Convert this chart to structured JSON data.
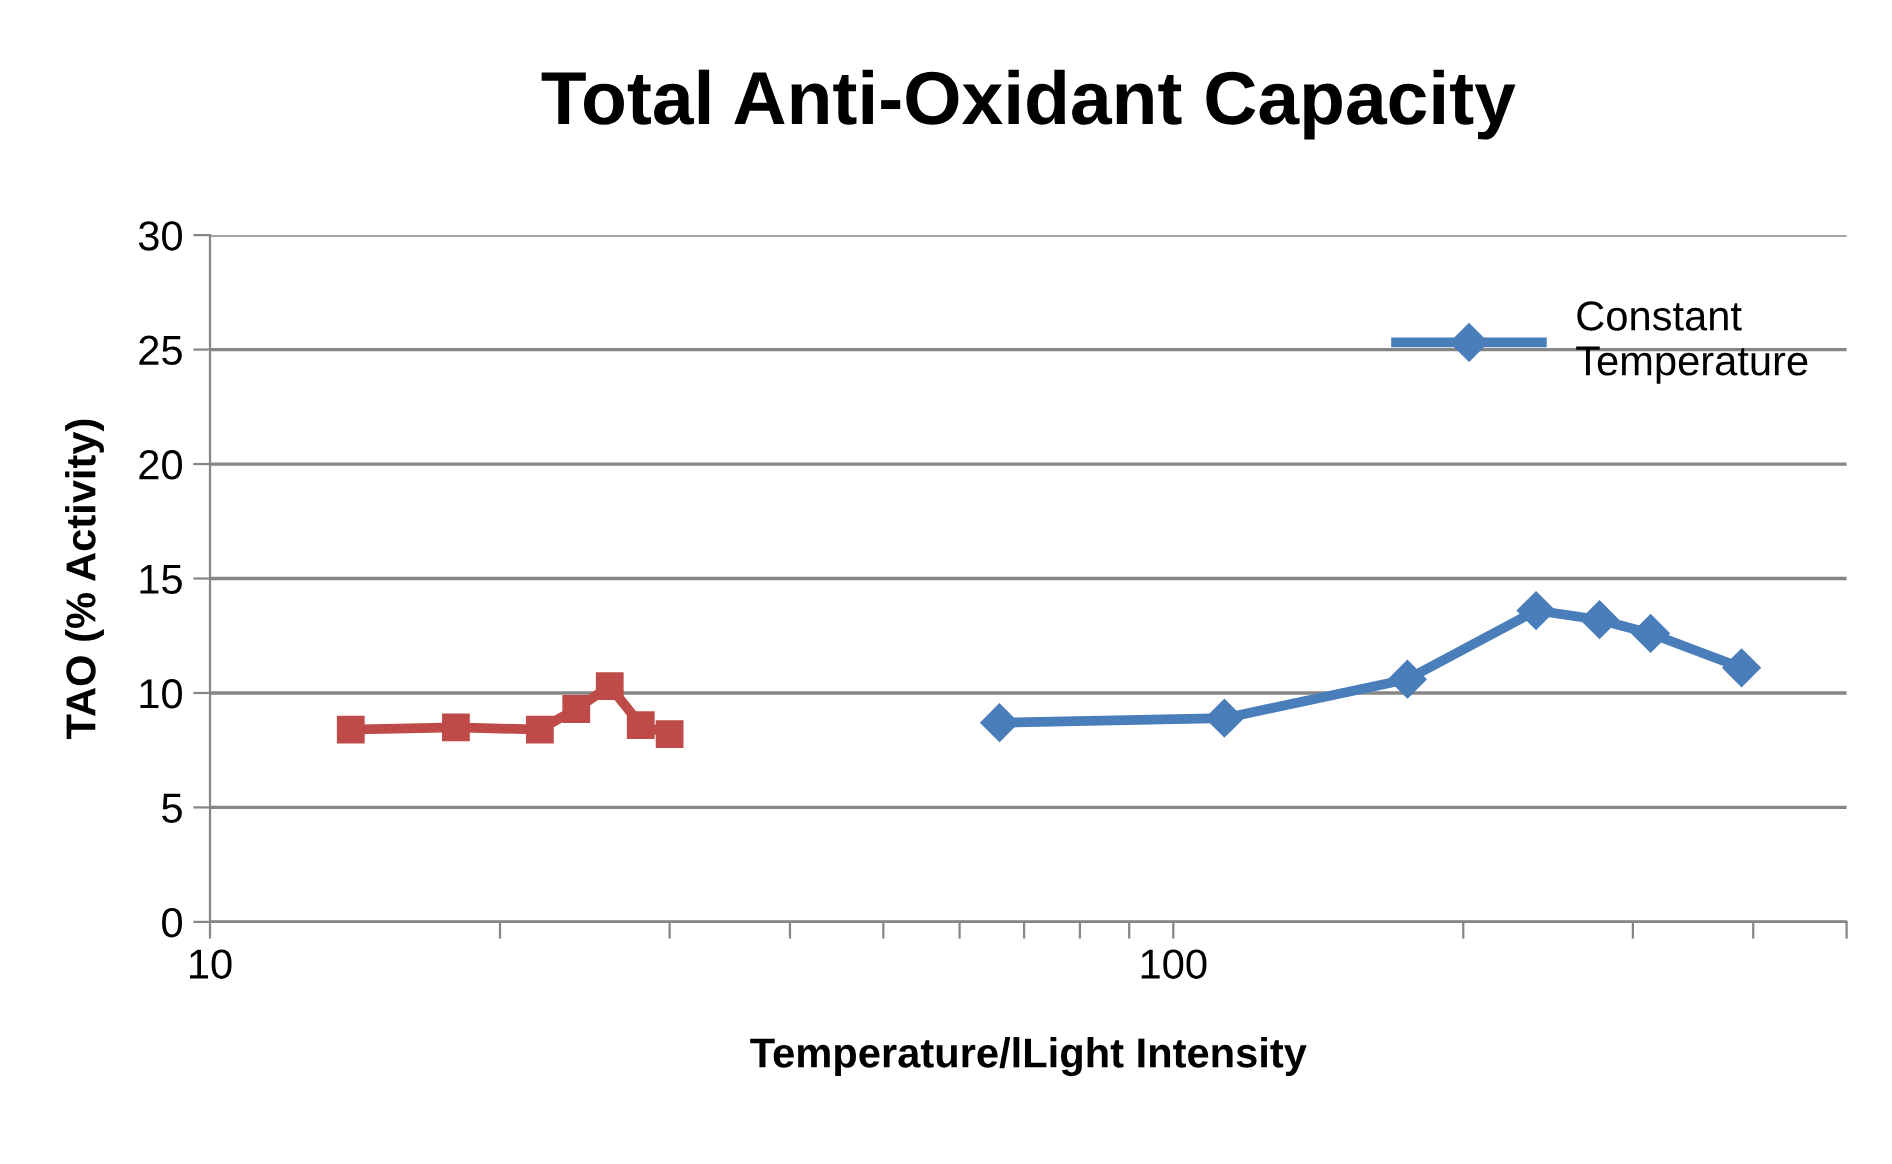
{
  "chart_data": {
    "type": "line",
    "title": "Total Anti-Oxidant Capacity",
    "xlabel": "Temperature/lLight Intensity",
    "ylabel": "TAO (% Activity)",
    "log": "x",
    "xlim": [
      10,
      500
    ],
    "xticks": [
      10,
      {
        "value": 20,
        "label": null
      },
      {
        "value": 30,
        "label": null
      },
      {
        "value": 40,
        "label": null
      },
      {
        "value": 50,
        "label": null
      },
      {
        "value": 60,
        "label": null
      },
      {
        "value": 70,
        "label": null
      },
      {
        "value": 80,
        "label": null
      },
      {
        "value": 90,
        "label": null
      },
      100,
      {
        "value": 200,
        "label": null
      },
      {
        "value": 300,
        "label": null
      },
      {
        "value": 400,
        "label": null
      },
      {
        "value": 500,
        "label": null
      }
    ],
    "ylim": [
      0,
      30
    ],
    "yticks": [
      0,
      5,
      10,
      15,
      20,
      25,
      30
    ],
    "grid": "y",
    "legend": "top right",
    "series": [
      {
        "name": "Constant Temperature",
        "color": "#4a7ebb",
        "marker": "diamond",
        "x": [
          66,
          113,
          175,
          238,
          277,
          313,
          389
        ],
        "values": [
          8.7,
          8.9,
          10.6,
          13.6,
          13.2,
          12.6,
          11.1
        ]
      },
      {
        "color": "#be4b48",
        "marker": "square",
        "x": [
          14,
          18,
          22,
          24,
          26,
          28,
          30
        ],
        "values": [
          8.4,
          8.5,
          8.4,
          9.3,
          10.3,
          8.6,
          8.2
        ]
      }
    ]
  }
}
